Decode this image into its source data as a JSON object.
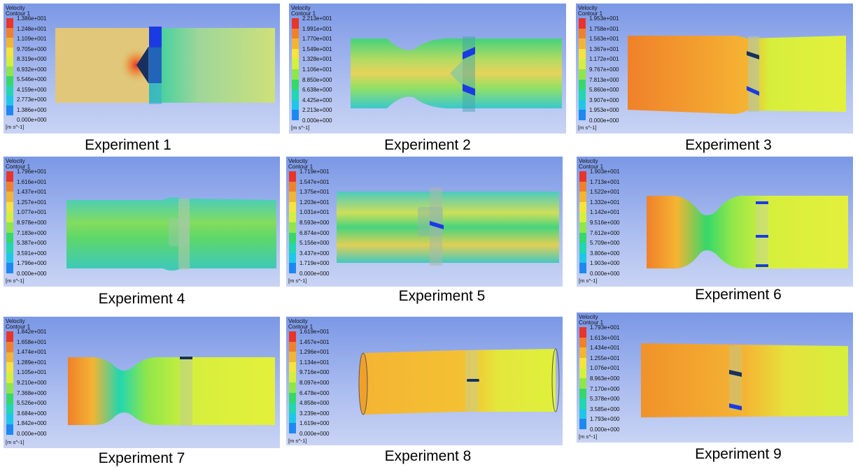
{
  "colors": {
    "scale": [
      "#e8342a",
      "#f0812a",
      "#f4b433",
      "#f6e33b",
      "#d6ef3c",
      "#8fe64a",
      "#36d86a",
      "#22d6b0",
      "#1fc7e6",
      "#1f87f0",
      "#1a3be3"
    ],
    "background_top": "#7b98e6",
    "background_bottom": "#c9d4f4"
  },
  "legend": {
    "variable": "Velocity",
    "contour": "Contour 1",
    "units": "[m s^-1]"
  },
  "experiments": [
    {
      "caption": "Experiment 1",
      "ticks": [
        "1.386e+001",
        "1.248e+001",
        "1.109e+001",
        "9.705e+000",
        "8.319e+000",
        "6.932e+000",
        "5.546e+000",
        "4.159e+000",
        "2.773e+000",
        "1.386e+000",
        "0.000e+000"
      ]
    },
    {
      "caption": "Experiment 2",
      "ticks": [
        "2.213e+001",
        "1.991e+001",
        "1.770e+001",
        "1.549e+001",
        "1.328e+001",
        "1.106e+001",
        "8.850e+000",
        "6.638e+000",
        "4.425e+000",
        "2.213e+000",
        "0.000e+000"
      ]
    },
    {
      "caption": "Experiment 3",
      "ticks": [
        "1.953e+001",
        "1.758e+001",
        "1.563e+001",
        "1.367e+001",
        "1.172e+001",
        "9.767e+000",
        "7.813e+000",
        "5.860e+000",
        "3.907e+000",
        "1.953e+000",
        "0.000e+000"
      ]
    },
    {
      "caption": "Experiment 4",
      "ticks": [
        "1.796e+001",
        "1.616e+001",
        "1.437e+001",
        "1.257e+001",
        "1.077e+001",
        "8.978e+000",
        "7.183e+000",
        "5.387e+000",
        "3.591e+000",
        "1.796e+000",
        "0.000e+000"
      ]
    },
    {
      "caption": "Experiment 5",
      "ticks": [
        "1.719e+001",
        "1.547e+001",
        "1.375e+001",
        "1.203e+001",
        "1.031e+001",
        "8.593e+000",
        "6.874e+000",
        "5.156e+000",
        "3.437e+000",
        "1.719e+000",
        "0.000e+000"
      ]
    },
    {
      "caption": "Experiment 6",
      "ticks": [
        "1.903e+001",
        "1.713e+001",
        "1.522e+001",
        "1.332e+001",
        "1.142e+001",
        "9.516e+000",
        "7.612e+000",
        "5.709e+000",
        "3.806e+000",
        "1.903e+000",
        "0.000e+000"
      ]
    },
    {
      "caption": "Experiment 7",
      "ticks": [
        "1.842e+001",
        "1.658e+001",
        "1.474e+001",
        "1.289e+001",
        "1.105e+001",
        "9.210e+000",
        "7.368e+000",
        "5.526e+000",
        "3.684e+000",
        "1.842e+000",
        "0.000e+000"
      ]
    },
    {
      "caption": "Experiment 8",
      "ticks": [
        "1.619e+001",
        "1.457e+001",
        "1.296e+001",
        "1.134e+001",
        "9.716e+000",
        "8.097e+000",
        "6.478e+000",
        "4.858e+000",
        "3.239e+000",
        "1.619e+000",
        "0.000e+000"
      ]
    },
    {
      "caption": "Experiment 9",
      "ticks": [
        "1.793e+001",
        "1.613e+001",
        "1.434e+001",
        "1.255e+001",
        "1.076e+001",
        "8.963e+000",
        "7.170e+000",
        "5.378e+000",
        "3.585e+000",
        "1.793e+000",
        "0.000e+000"
      ]
    }
  ]
}
